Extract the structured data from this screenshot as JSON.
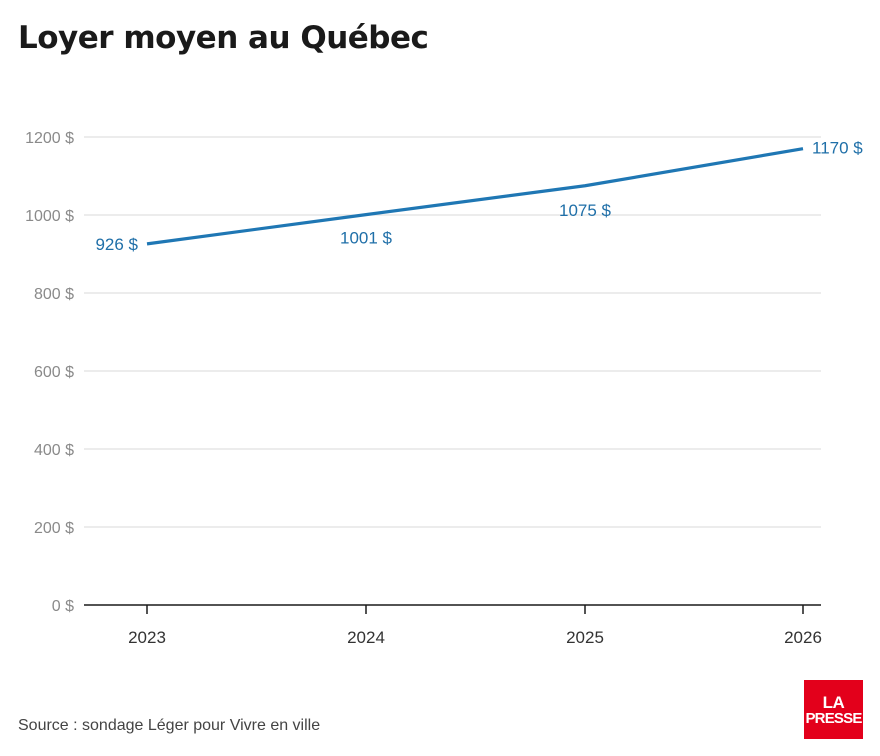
{
  "chart_data": {
    "type": "line",
    "title": "Loyer moyen au Québec",
    "x": [
      "2023",
      "2024",
      "2025",
      "2026"
    ],
    "series": [
      {
        "values": [
          926,
          1001,
          1075,
          1170
        ],
        "labels": [
          "926 $",
          "1001 $",
          "1075 $",
          "1170 $"
        ],
        "color": "#1f77b4"
      }
    ],
    "y_ticks": [
      0,
      200,
      400,
      600,
      800,
      1000,
      1200
    ],
    "y_tick_labels": [
      "0 $",
      "200 $",
      "400 $",
      "600 $",
      "800 $",
      "1000 $",
      "1200 $"
    ],
    "ylim": [
      0,
      1200
    ],
    "xlabel": "",
    "ylabel": "",
    "grid": true,
    "legend": "none"
  },
  "source": "Source : sondage Léger pour Vivre en ville",
  "logo": {
    "line1": "LA",
    "line2": "PRESSE",
    "color": "#e3001b"
  },
  "colors": {
    "line": "#1f77b4",
    "label": "#1f6fa8",
    "tick_label": "#8a8a8a",
    "grid": "#e0e0e0",
    "axis": "#1a1a1a"
  }
}
